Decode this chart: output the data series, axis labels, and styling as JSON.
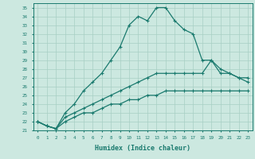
{
  "xlabel": "Humidex (Indice chaleur)",
  "ylabel": "",
  "x": [
    0,
    1,
    2,
    3,
    4,
    5,
    6,
    7,
    8,
    9,
    10,
    11,
    12,
    13,
    14,
    15,
    16,
    17,
    18,
    19,
    20,
    21,
    22,
    23
  ],
  "line_max": [
    22,
    21.5,
    21.2,
    23,
    24,
    25.5,
    26.5,
    27.5,
    29,
    30.5,
    33,
    34,
    33.5,
    35,
    35,
    33.5,
    32.5,
    32,
    29,
    29,
    27.5,
    27.5,
    27,
    27
  ],
  "line_mid": [
    22,
    21.5,
    21.2,
    22.5,
    23,
    23.5,
    24,
    24.5,
    25,
    25.5,
    26,
    26.5,
    27,
    27.5,
    27.5,
    27.5,
    27.5,
    27.5,
    27.5,
    29,
    28,
    27.5,
    27,
    26.5
  ],
  "line_min": [
    22,
    21.5,
    21.2,
    22,
    22.5,
    23,
    23,
    23.5,
    24,
    24,
    24.5,
    24.5,
    25,
    25,
    25.5,
    25.5,
    25.5,
    25.5,
    25.5,
    25.5,
    25.5,
    25.5,
    25.5,
    25.5
  ],
  "line_color": "#1a7a6e",
  "bg_color": "#cce8e0",
  "grid_color": "#a8cfc4",
  "ylim": [
    21,
    35.5
  ],
  "yticks": [
    21,
    22,
    23,
    24,
    25,
    26,
    27,
    28,
    29,
    30,
    31,
    32,
    33,
    34,
    35
  ],
  "xticks": [
    0,
    1,
    2,
    3,
    4,
    5,
    6,
    7,
    8,
    9,
    10,
    11,
    12,
    13,
    14,
    15,
    16,
    17,
    18,
    19,
    20,
    21,
    22,
    23
  ],
  "marker": "+",
  "marker_size": 3,
  "linewidth": 0.9
}
